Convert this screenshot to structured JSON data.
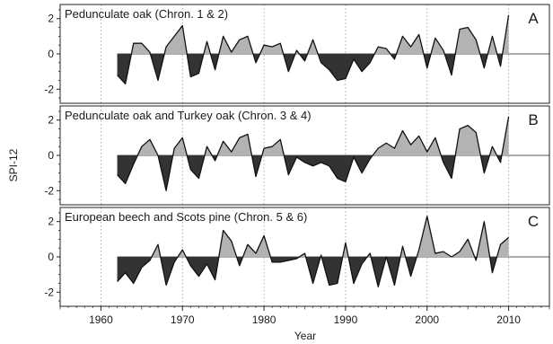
{
  "chart_data": [
    {
      "type": "area",
      "title": "Pedunculate oak (Chron. 1 & 2)",
      "panel_letter": "A",
      "ylabel": "SPI-12",
      "xlabel": "Year",
      "xlim": [
        1955,
        2015
      ],
      "ylim": [
        -2.8,
        2.8
      ],
      "x_ticks": [
        1960,
        1970,
        1980,
        1990,
        2000,
        2010
      ],
      "y_ticks": [
        -2,
        0,
        2
      ],
      "grid": "vertical dotted",
      "positive_fill": "#b3b3b3",
      "negative_fill": "#333333",
      "x": [
        1962,
        1963,
        1964,
        1965,
        1966,
        1967,
        1968,
        1969,
        1970,
        1971,
        1972,
        1973,
        1974,
        1975,
        1976,
        1977,
        1978,
        1979,
        1980,
        1981,
        1982,
        1983,
        1984,
        1985,
        1986,
        1987,
        1988,
        1989,
        1990,
        1991,
        1992,
        1993,
        1994,
        1995,
        1996,
        1997,
        1998,
        1999,
        2000,
        2001,
        2002,
        2003,
        2004,
        2005,
        2006,
        2007,
        2008,
        2009,
        2010
      ],
      "values": [
        -1.2,
        -1.7,
        0.6,
        0.6,
        0.1,
        -1.5,
        0.4,
        1.0,
        1.6,
        -1.3,
        -1.1,
        0.7,
        -0.9,
        1.0,
        0.1,
        0.8,
        1.0,
        -0.5,
        0.5,
        0.4,
        0.6,
        -1.0,
        0.2,
        -0.4,
        0.8,
        -0.5,
        -0.9,
        -1.5,
        -1.4,
        -0.3,
        -1.0,
        -0.5,
        0.4,
        0.3,
        -0.3,
        1.0,
        0.4,
        1.1,
        -0.8,
        0.9,
        0.2,
        -1.2,
        1.4,
        1.5,
        0.8,
        -0.8,
        1.0,
        -0.7,
        2.2
      ]
    },
    {
      "type": "area",
      "title": "Pedunculate oak and Turkey oak (Chron. 3 & 4)",
      "panel_letter": "B",
      "ylabel": "SPI-12",
      "xlabel": "Year",
      "xlim": [
        1955,
        2015
      ],
      "ylim": [
        -2.8,
        2.8
      ],
      "x_ticks": [
        1960,
        1970,
        1980,
        1990,
        2000,
        2010
      ],
      "y_ticks": [
        -2,
        0,
        2
      ],
      "grid": "vertical dotted",
      "positive_fill": "#b3b3b3",
      "negative_fill": "#333333",
      "x": [
        1962,
        1963,
        1964,
        1965,
        1966,
        1967,
        1968,
        1969,
        1970,
        1971,
        1972,
        1973,
        1974,
        1975,
        1976,
        1977,
        1978,
        1979,
        1980,
        1981,
        1982,
        1983,
        1984,
        1985,
        1986,
        1987,
        1988,
        1989,
        1990,
        1991,
        1992,
        1993,
        1994,
        1995,
        1996,
        1997,
        1998,
        1999,
        2000,
        2001,
        2002,
        2003,
        2004,
        2005,
        2006,
        2007,
        2008,
        2009,
        2010
      ],
      "values": [
        -1.1,
        -1.6,
        -0.5,
        0.5,
        0.9,
        0.0,
        -2.0,
        0.4,
        1.0,
        -0.8,
        -1.3,
        0.5,
        -0.3,
        0.8,
        0.2,
        1.0,
        1.2,
        -1.2,
        0.4,
        0.5,
        0.9,
        -1.1,
        -0.1,
        -0.4,
        -0.6,
        -0.4,
        -0.6,
        -1.3,
        -1.5,
        -0.1,
        -1.0,
        -0.2,
        0.4,
        0.7,
        0.4,
        1.4,
        0.6,
        1.1,
        0.2,
        1.0,
        -0.4,
        -1.3,
        1.5,
        1.7,
        1.3,
        -1.0,
        0.5,
        -0.4,
        2.2
      ]
    },
    {
      "type": "area",
      "title": "European beech and Scots pine (Chron. 5 & 6)",
      "panel_letter": "C",
      "ylabel": "SPI-12",
      "xlabel": "Year",
      "xlim": [
        1955,
        2015
      ],
      "ylim": [
        -2.8,
        2.8
      ],
      "x_ticks": [
        1960,
        1970,
        1980,
        1990,
        2000,
        2010
      ],
      "y_ticks": [
        -2,
        0,
        2
      ],
      "grid": "vertical dotted",
      "positive_fill": "#b3b3b3",
      "negative_fill": "#333333",
      "x": [
        1962,
        1963,
        1964,
        1965,
        1966,
        1967,
        1968,
        1969,
        1970,
        1971,
        1972,
        1973,
        1974,
        1975,
        1976,
        1977,
        1978,
        1979,
        1980,
        1981,
        1982,
        1983,
        1984,
        1985,
        1986,
        1987,
        1988,
        1989,
        1990,
        1991,
        1992,
        1993,
        1994,
        1995,
        1996,
        1997,
        1998,
        1999,
        2000,
        2001,
        2002,
        2003,
        2004,
        2005,
        2006,
        2007,
        2008,
        2009,
        2010
      ],
      "values": [
        -1.4,
        -0.9,
        -1.5,
        -0.6,
        -0.2,
        0.7,
        -1.6,
        -0.3,
        0.4,
        -0.5,
        -1.1,
        -0.4,
        -1.3,
        1.5,
        0.9,
        -0.5,
        0.7,
        0.2,
        1.2,
        -0.3,
        -0.3,
        -0.2,
        -0.1,
        0.2,
        -1.5,
        0.1,
        -1.6,
        -1.5,
        0.8,
        -1.5,
        -0.4,
        0.2,
        -1.7,
        0.0,
        -1.6,
        0.6,
        -1.1,
        0.4,
        2.3,
        0.2,
        0.3,
        0.0,
        0.3,
        1.0,
        -0.2,
        2.0,
        -0.9,
        0.7,
        1.1
      ]
    }
  ],
  "axes": {
    "ylabel": "SPI-12",
    "xlabel": "Year"
  }
}
